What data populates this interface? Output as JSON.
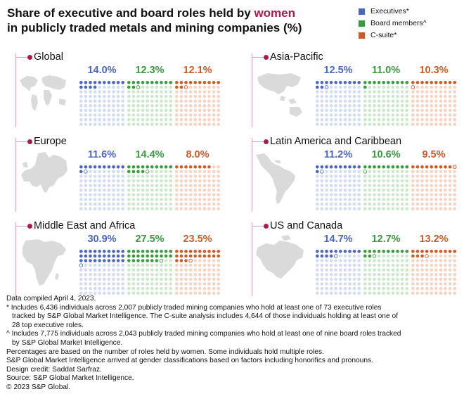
{
  "title": {
    "part1": "Share of executive and board roles held by ",
    "highlight": "women",
    "part2": "in publicly traded metals and mining companies (%)"
  },
  "legend": [
    {
      "label": "Executives*",
      "color": "#4a66c0"
    },
    {
      "label": "Board members^",
      "color": "#3a9a3f"
    },
    {
      "label": "C-suite*",
      "color": "#d05a26"
    }
  ],
  "chart_data": {
    "type": "waffle",
    "title": "Share of executive and board roles held by women in publicly traded metals and mining companies (%)",
    "unit": "%",
    "series": [
      "Executives*",
      "Board members^",
      "C-suite*"
    ],
    "colors": {
      "executives": {
        "fill": "#4a66c0",
        "empty": "#d3dcf1"
      },
      "board": {
        "fill": "#3a9a3f",
        "empty": "#cde7cd"
      },
      "csuite": {
        "fill": "#d05a26",
        "empty": "#f3d4c5"
      }
    },
    "regions": [
      {
        "name": "Global",
        "executives": 14.0,
        "board": 12.3,
        "csuite": 12.1,
        "labels": {
          "executives": "14.0%",
          "board": "12.3%",
          "csuite": "12.1%"
        }
      },
      {
        "name": "Asia-Pacific",
        "executives": 12.5,
        "board": 11.0,
        "csuite": 10.3,
        "labels": {
          "executives": "12.5%",
          "board": "11.0%",
          "csuite": "10.3%"
        }
      },
      {
        "name": "Europe",
        "executives": 11.6,
        "board": 14.4,
        "csuite": 8.0,
        "labels": {
          "executives": "11.6%",
          "board": "14.4%",
          "csuite": "8.0%"
        }
      },
      {
        "name": "Latin America and Caribbean",
        "executives": 11.2,
        "board": 10.6,
        "csuite": 9.5,
        "labels": {
          "executives": "11.2%",
          "board": "10.6%",
          "csuite": "9.5%"
        }
      },
      {
        "name": "Middle East and Africa",
        "executives": 30.9,
        "board": 27.5,
        "csuite": 23.5,
        "labels": {
          "executives": "30.9%",
          "board": "27.5%",
          "csuite": "23.5%"
        }
      },
      {
        "name": "US and Canada",
        "executives": 14.7,
        "board": 12.7,
        "csuite": 13.2,
        "labels": {
          "executives": "14.7%",
          "board": "12.7%",
          "csuite": "13.2%"
        }
      }
    ]
  },
  "footer": {
    "line1": "Data compiled April 4, 2023.",
    "line2": "* Includes 6,436 individuals across 2,007 publicly traded mining companies who hold at least one of 73 executive roles",
    "line3": "tracked by S&P Global Market Intelligence. The C-suite analysis includes 4,644 of those individuals holding at least one of",
    "line4": "28 top executive roles.",
    "line5": "^ Includes 7,775 individuals across 2,043 publicly traded mining companies who hold at least one of nine board roles tracked",
    "line6": "by S&P Global Market Intelligence.",
    "line7": "Percentages are based on the number of roles held by women. Some individuals hold multiple roles.",
    "line8": "S&P Global Market Intelligence arrived at gender classifications based on factors including honorifics and pronouns.",
    "line9": "Design credit: Saddat Sarfraz.",
    "line10": "Source: S&P Global Market Intelligence.",
    "line11": "© 2023 S&P Global."
  }
}
